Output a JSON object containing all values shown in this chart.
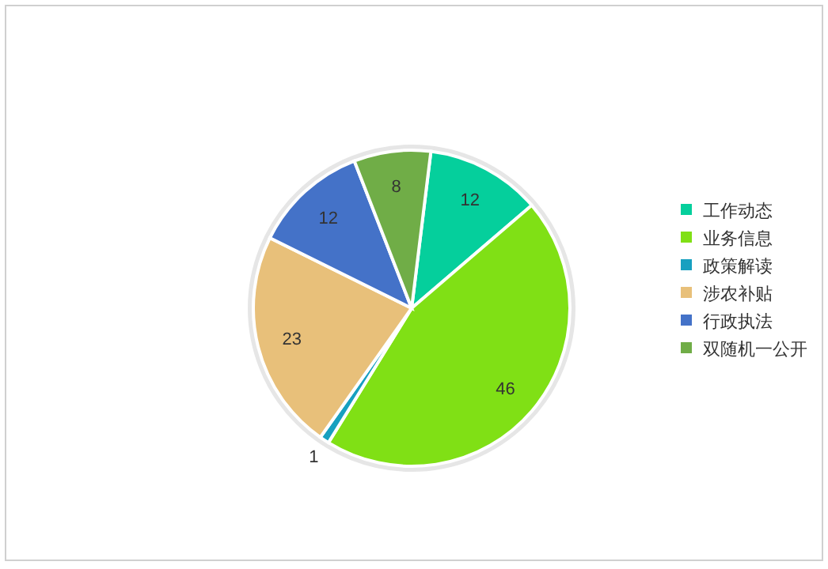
{
  "chart_data": {
    "type": "pie",
    "categories": [
      "工作动态",
      "业务信息",
      "政策解读",
      "涉农补贴",
      "行政执法",
      "双随机一公开"
    ],
    "values": [
      12,
      46,
      1,
      23,
      12,
      8
    ],
    "colors": [
      "#05cf9c",
      "#80e015",
      "#17a0c0",
      "#e8c07a",
      "#4472c8",
      "#70ad47"
    ],
    "data_labels": true,
    "legend": "right"
  }
}
